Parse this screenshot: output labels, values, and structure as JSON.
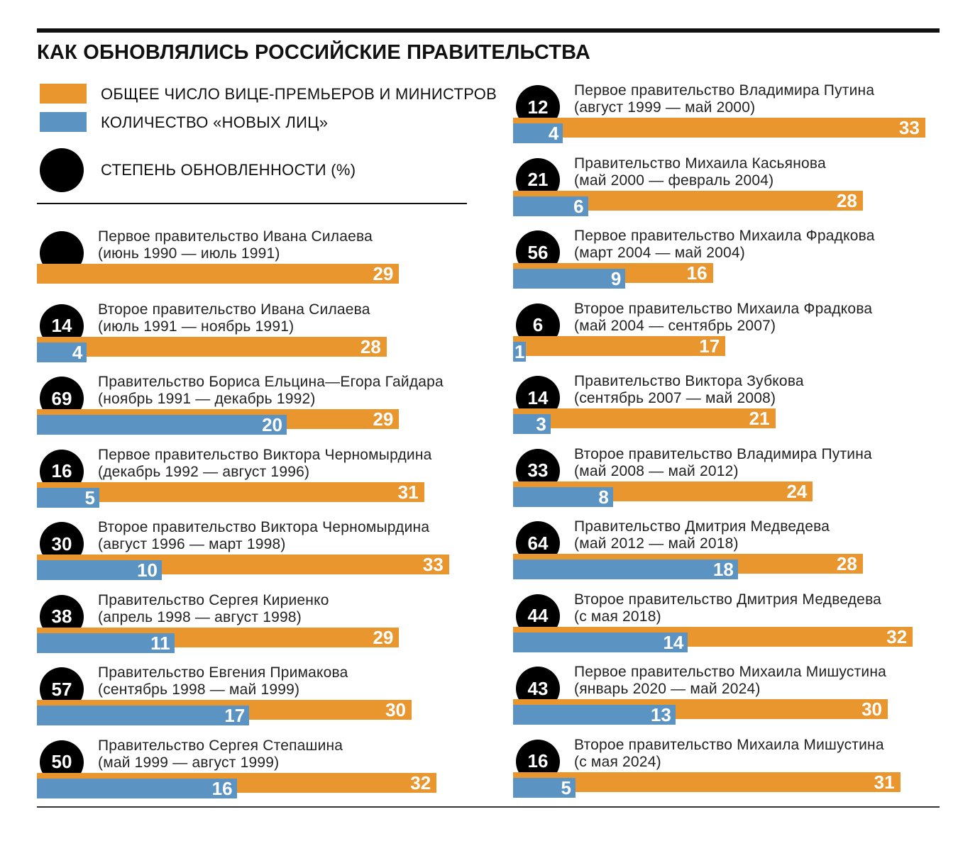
{
  "title": "КАК ОБНОВЛЯЛИСЬ РОССИЙСКИЕ ПРАВИТЕЛЬСТВА",
  "colors": {
    "total": "#E9962F",
    "new": "#5B93C2",
    "circle": "#000000"
  },
  "legend": {
    "total": "ОБЩЕЕ ЧИСЛО ВИЦЕ-ПРЕМЬЕРОВ И МИНИСТРОВ",
    "new": "КОЛИЧЕСТВО «НОВЫХ ЛИЦ»",
    "renewal": "СТЕПЕНЬ ОБНОВЛЕННОСТИ (%)"
  },
  "chart_data": {
    "type": "bar",
    "title": "КАК ОБНОВЛЯЛИСЬ РОССИЙСКИЕ ПРАВИТЕЛЬСТВА",
    "series": [
      {
        "name": "ОБЩЕЕ ЧИСЛО ВИЦЕ-ПРЕМЬЕРОВ И МИНИСТРОВ",
        "key": "total"
      },
      {
        "name": "КОЛИЧЕСТВО «НОВЫХ ЛИЦ»",
        "key": "new"
      },
      {
        "name": "СТЕПЕНЬ ОБНОВЛЕННОСТИ (%)",
        "key": "pct"
      }
    ],
    "governments": [
      {
        "name": "Первое правительство Ивана Силаева",
        "period": "(июнь 1990 — июль 1991)",
        "total": 29,
        "new": null,
        "pct": null
      },
      {
        "name": "Второе правительство Ивана Силаева",
        "period": "(июль 1991 — ноябрь 1991)",
        "total": 28,
        "new": 4,
        "pct": 14
      },
      {
        "name": "Правительство Бориса Ельцина—Егора Гайдара",
        "period": "(ноябрь 1991 — декабрь 1992)",
        "total": 29,
        "new": 20,
        "pct": 69
      },
      {
        "name": "Первое правительство Виктора Черномырдина",
        "period": "(декабрь 1992 — август 1996)",
        "total": 31,
        "new": 5,
        "pct": 16
      },
      {
        "name": "Второе правительство Виктора Черномырдина",
        "period": "(август 1996 — март 1998)",
        "total": 33,
        "new": 10,
        "pct": 30
      },
      {
        "name": "Правительство Сергея Кириенко",
        "period": "(апрель 1998 — август 1998)",
        "total": 29,
        "new": 11,
        "pct": 38
      },
      {
        "name": "Правительство Евгения Примакова",
        "period": "(сентябрь 1998 — май 1999)",
        "total": 30,
        "new": 17,
        "pct": 57
      },
      {
        "name": "Правительство Сергея Степашина",
        "period": "(май 1999 — август 1999)",
        "total": 32,
        "new": 16,
        "pct": 50
      },
      {
        "name": "Первое правительство Владимира Путина",
        "period": "(август 1999 — май 2000)",
        "total": 33,
        "new": 4,
        "pct": 12
      },
      {
        "name": "Правительство Михаила Касьянова",
        "period": "(май 2000 — февраль 2004)",
        "total": 28,
        "new": 6,
        "pct": 21
      },
      {
        "name": "Первое правительство Михаила Фрадкова",
        "period": "(март 2004 — май 2004)",
        "total": 16,
        "new": 9,
        "pct": 56
      },
      {
        "name": "Второе правительство Михаила Фрадкова",
        "period": "(май 2004 — сентябрь 2007)",
        "total": 17,
        "new": 1,
        "pct": 6
      },
      {
        "name": "Правительство Виктора Зубкова",
        "period": "(сентябрь 2007 — май 2008)",
        "total": 21,
        "new": 3,
        "pct": 14
      },
      {
        "name": "Второе правительство Владимира Путина",
        "period": "(май 2008 — май 2012)",
        "total": 24,
        "new": 8,
        "pct": 33
      },
      {
        "name": "Правительство Дмитрия Медведева",
        "period": "(май 2012 — май 2018)",
        "total": 28,
        "new": 18,
        "pct": 64
      },
      {
        "name": "Второе правительство Дмитрия Медведева",
        "period": "(с мая 2018)",
        "total": 32,
        "new": 14,
        "pct": 44
      },
      {
        "name": "Первое правительство Михаила Мишустина",
        "period": "(январь 2020 — май 2024)",
        "total": 30,
        "new": 13,
        "pct": 43
      },
      {
        "name": "Второе правительство Михаила Мишустина",
        "period": "(с мая 2024)",
        "total": 31,
        "new": 5,
        "pct": 16
      }
    ]
  }
}
